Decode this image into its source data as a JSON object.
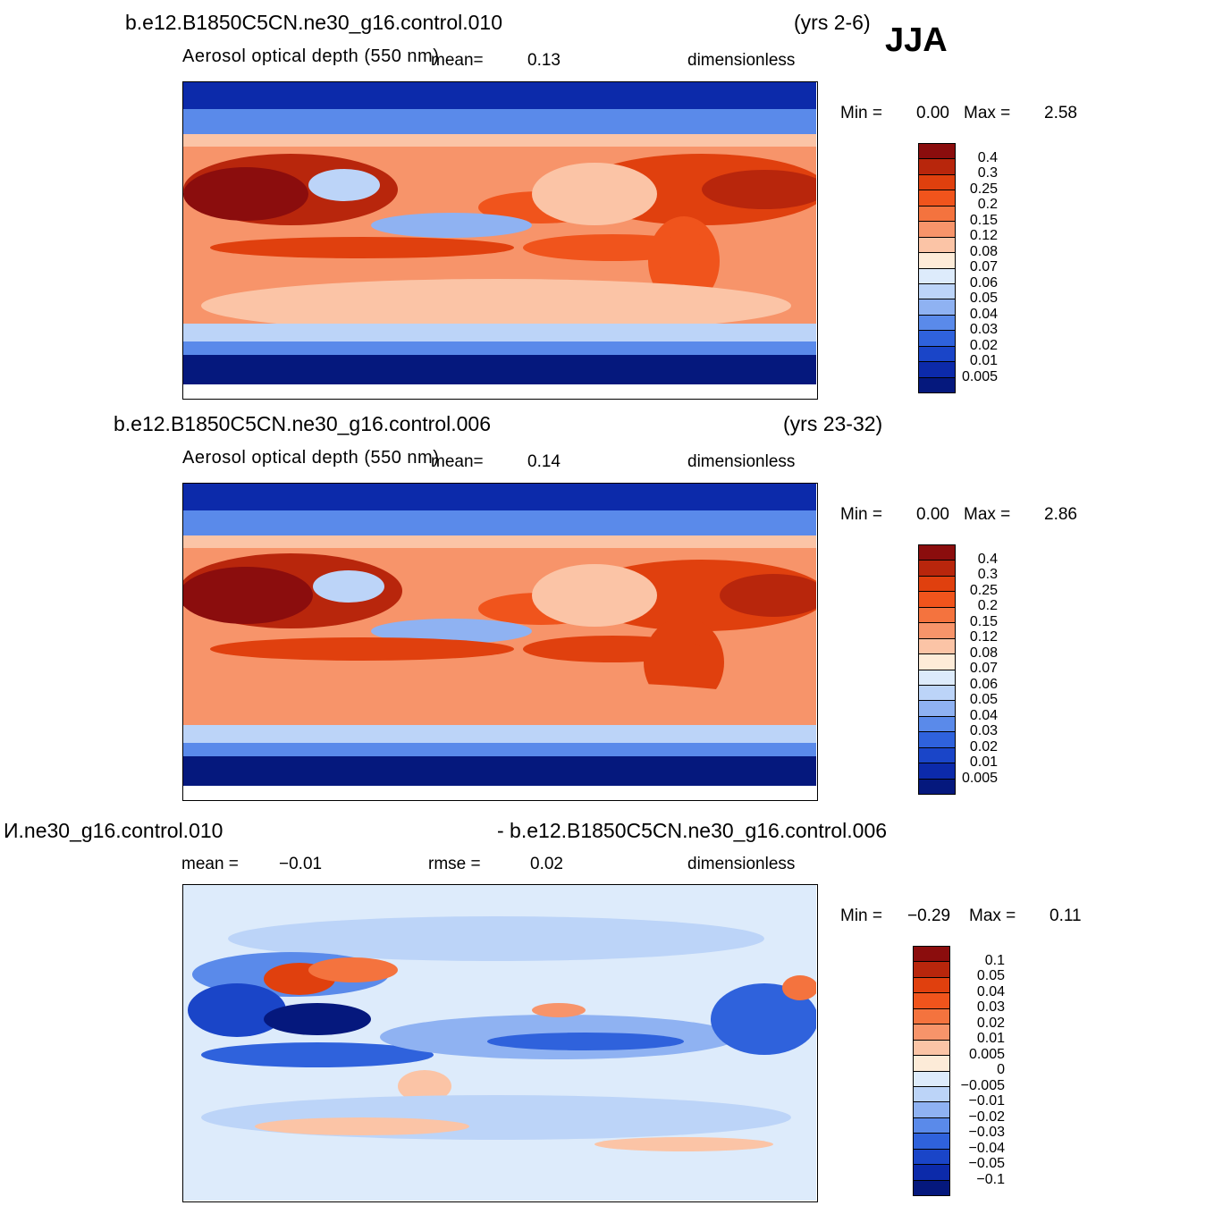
{
  "season": "JJA",
  "panels": [
    {
      "case_title": "b.e12.B1850C5CN.ne30_g16.control.010",
      "years": "(yrs 2-6)",
      "variable": "Aerosol optical depth (550 nm)",
      "mean_label": "mean=",
      "mean_value": "0.13",
      "units": "dimensionless",
      "min_label": "Min =",
      "min_value": "0.00",
      "max_label": "Max =",
      "max_value": "2.58"
    },
    {
      "case_title": "b.e12.B1850C5CN.ne30_g16.control.006",
      "years": "(yrs 23-32)",
      "variable": "Aerosol optical depth (550 nm)",
      "mean_label": "mean=",
      "mean_value": "0.14",
      "units": "dimensionless",
      "min_label": "Min =",
      "min_value": "0.00",
      "max_label": "Max =",
      "max_value": "2.86"
    },
    {
      "case_title_left": "И.ne30_g16.control.010",
      "case_title_right": "- b.e12.B1850C5CN.ne30_g16.control.006",
      "mean_label": "mean =",
      "mean_value": "−0.01",
      "rmse_label": "rmse =",
      "rmse_value": "0.02",
      "units": "dimensionless",
      "min_label": "Min =",
      "min_value": "−0.29",
      "max_label": "Max =",
      "max_value": "0.11"
    }
  ],
  "colorbar_abs": {
    "labels": [
      "0.4",
      "0.3",
      "0.25",
      "0.2",
      "0.15",
      "0.12",
      "0.08",
      "0.07",
      "0.06",
      "0.05",
      "0.04",
      "0.03",
      "0.02",
      "0.01",
      "0.005"
    ],
    "colors": [
      "#8b0d0d",
      "#b8260c",
      "#e0400e",
      "#f0541c",
      "#f4733e",
      "#f7946a",
      "#fbc4a6",
      "#fdebd8",
      "#ddebfb",
      "#bcd4f8",
      "#8fb2f2",
      "#5a8aea",
      "#2f62dc",
      "#1a45c8",
      "#0c2aaa",
      "#05187d"
    ]
  },
  "colorbar_diff": {
    "labels": [
      "0.1",
      "0.05",
      "0.04",
      "0.03",
      "0.02",
      "0.01",
      "0.005",
      "0",
      "−0.005",
      "−0.01",
      "−0.02",
      "−0.03",
      "−0.04",
      "−0.05",
      "−0.1"
    ],
    "colors": [
      "#8b0d0d",
      "#b8260c",
      "#e0400e",
      "#f0541c",
      "#f4733e",
      "#f7946a",
      "#fbc4a6",
      "#fdebd8",
      "#ddebfb",
      "#bcd4f8",
      "#8fb2f2",
      "#5a8aea",
      "#2f62dc",
      "#1a45c8",
      "#0c2aaa",
      "#05187d"
    ]
  }
}
